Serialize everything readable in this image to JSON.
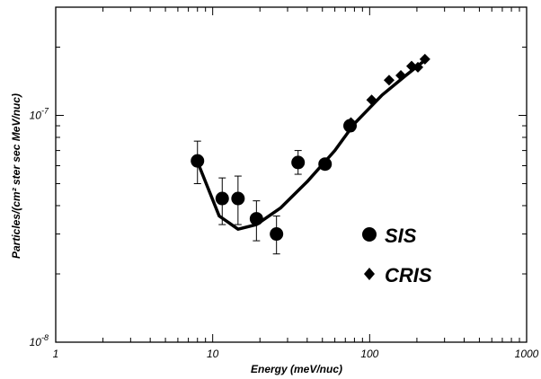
{
  "chart_data": {
    "type": "scatter",
    "x_scale": "log",
    "y_scale": "log",
    "xlim": [
      1,
      1000
    ],
    "ylim": [
      1e-08,
      3e-07
    ],
    "xlabel": "Energy (meV/nuc)",
    "ylabel": "Particles/(cm² ster sec MeV/nuc)",
    "x_ticks": [
      {
        "value": 1,
        "label": "1"
      },
      {
        "value": 10,
        "label": "10"
      },
      {
        "value": 100,
        "label": "100"
      },
      {
        "value": 1000,
        "label": "1000"
      }
    ],
    "y_ticks": [
      {
        "value": 1e-08,
        "base": "10",
        "exp": "-8"
      },
      {
        "value": 1e-07,
        "base": "10",
        "exp": "-7"
      }
    ],
    "grid": false,
    "legend_position": "lower-right",
    "series": [
      {
        "name": "SIS",
        "marker": "circle",
        "points": [
          {
            "x": 8.0,
            "y": 6.3e-08,
            "lo": 5e-08,
            "hi": 7.7e-08
          },
          {
            "x": 11.5,
            "y": 4.3e-08,
            "lo": 3.3e-08,
            "hi": 5.3e-08
          },
          {
            "x": 14.5,
            "y": 4.3e-08,
            "lo": 3.3e-08,
            "hi": 5.4e-08
          },
          {
            "x": 19.0,
            "y": 3.5e-08,
            "lo": 2.8e-08,
            "hi": 4.2e-08
          },
          {
            "x": 25.5,
            "y": 3e-08,
            "lo": 2.45e-08,
            "hi": 3.6e-08
          },
          {
            "x": 35.0,
            "y": 6.2e-08,
            "lo": 5.5e-08,
            "hi": 7e-08
          },
          {
            "x": 52.0,
            "y": 6.1e-08,
            "lo": 5.8e-08,
            "hi": 6.4e-08
          },
          {
            "x": 75.0,
            "y": 9e-08,
            "lo": 8.5e-08,
            "hi": 9.5e-08
          }
        ]
      },
      {
        "name": "CRIS",
        "marker": "diamond",
        "points": [
          {
            "x": 76,
            "y": 9.3e-08
          },
          {
            "x": 103,
            "y": 1.17e-07
          },
          {
            "x": 133,
            "y": 1.43e-07
          },
          {
            "x": 158,
            "y": 1.5e-07
          },
          {
            "x": 185,
            "y": 1.65e-07
          },
          {
            "x": 203,
            "y": 1.63e-07
          },
          {
            "x": 225,
            "y": 1.77e-07
          }
        ]
      },
      {
        "name": "",
        "type": "line",
        "points": [
          {
            "x": 8.0,
            "y": 6.25e-08
          },
          {
            "x": 11.0,
            "y": 3.6e-08
          },
          {
            "x": 14.5,
            "y": 3.15e-08
          },
          {
            "x": 19.0,
            "y": 3.3e-08
          },
          {
            "x": 27.0,
            "y": 3.9e-08
          },
          {
            "x": 40.0,
            "y": 5.1e-08
          },
          {
            "x": 60.0,
            "y": 7e-08
          },
          {
            "x": 80.0,
            "y": 9.2e-08
          },
          {
            "x": 120.0,
            "y": 1.23e-07
          },
          {
            "x": 170.0,
            "y": 1.5e-07
          },
          {
            "x": 225.0,
            "y": 1.75e-07
          }
        ]
      }
    ]
  }
}
